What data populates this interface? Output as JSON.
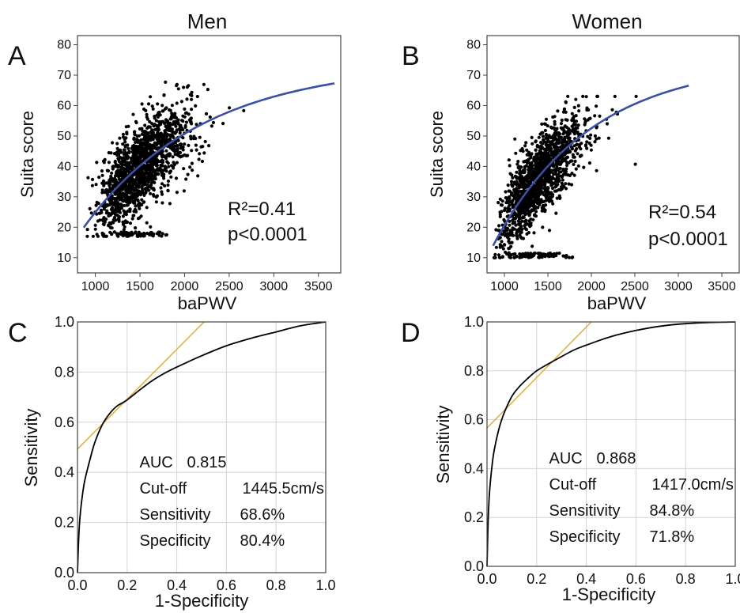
{
  "chart_data": [
    {
      "panel_letter": "A",
      "type": "scatter",
      "title": "Men",
      "xlabel": "baPWV",
      "ylabel": "Suita score",
      "xlim": [
        800,
        3750
      ],
      "ylim": [
        5,
        83
      ],
      "x_ticks": [
        1000,
        1500,
        2000,
        2500,
        3000,
        3500
      ],
      "y_ticks": [
        10,
        20,
        30,
        40,
        50,
        60,
        70,
        80
      ],
      "grid": false,
      "point_cloud": {
        "n": 1500,
        "seed": 11,
        "x_min": 900,
        "x_max": 3600,
        "y_min": 17,
        "y_max": 78,
        "log_x_mean": 7.32,
        "log_x_sd": 0.17,
        "residual_sd": 7.0,
        "y_floor_band": [
          17,
          18.5
        ],
        "fit": {
          "a": 55,
          "b": -1.9e-05
        }
      },
      "fit_line": {
        "color": "#3b4fa3",
        "x_range": [
          870,
          3680
        ]
      },
      "annotations": [
        "R²=0.41",
        "p<0.0001"
      ]
    },
    {
      "panel_letter": "B",
      "type": "scatter",
      "title": "Women",
      "xlabel": "baPWV",
      "ylabel": "Suita score",
      "xlim": [
        800,
        3700
      ],
      "ylim": [
        5,
        83
      ],
      "x_ticks": [
        1000,
        1500,
        2000,
        2500,
        3000,
        3500
      ],
      "y_ticks": [
        10,
        20,
        30,
        40,
        50,
        60,
        70,
        80
      ],
      "grid": false,
      "point_cloud": {
        "n": 1500,
        "seed": 29,
        "x_min": 880,
        "x_max": 3150,
        "y_min": 10,
        "y_max": 63,
        "log_x_mean": 7.24,
        "log_x_sd": 0.17,
        "residual_sd": 6.5,
        "y_floor_band": [
          10,
          11.5
        ],
        "fit": {
          "a": 56,
          "b": -2.3e-05
        }
      },
      "fit_line": {
        "color": "#3b4fa3",
        "x_range": [
          870,
          3120
        ]
      },
      "annotations": [
        "R²=0.54",
        "p<0.0001"
      ]
    },
    {
      "panel_letter": "C",
      "type": "line",
      "title": "",
      "xlabel": "1-Specificity",
      "ylabel": "Sensitivity",
      "xlim": [
        0,
        1
      ],
      "ylim": [
        0,
        1
      ],
      "x_ticks": [
        "0.0",
        "0.2",
        "0.4",
        "0.6",
        "0.8",
        "1.0"
      ],
      "y_ticks": [
        "0.0",
        "0.2",
        "0.4",
        "0.6",
        "0.8",
        "1.0"
      ],
      "grid": true,
      "roc_curve": {
        "x": [
          0,
          0.005,
          0.01,
          0.02,
          0.03,
          0.05,
          0.07,
          0.1,
          0.13,
          0.16,
          0.196,
          0.25,
          0.3,
          0.35,
          0.4,
          0.5,
          0.6,
          0.7,
          0.8,
          0.9,
          1.0
        ],
        "y": [
          0,
          0.14,
          0.22,
          0.31,
          0.37,
          0.45,
          0.52,
          0.59,
          0.635,
          0.665,
          0.686,
          0.728,
          0.765,
          0.795,
          0.82,
          0.865,
          0.905,
          0.935,
          0.96,
          0.985,
          1.0
        ]
      },
      "tangent_line": {
        "color": "#d9b44a",
        "points": [
          [
            0,
            0.493
          ],
          [
            0.51,
            1.0
          ]
        ]
      },
      "annotations": [
        {
          "label": "AUC",
          "value": "0.815"
        },
        {
          "label": "Cut-off",
          "value": "1445.5cm/s"
        },
        {
          "label": "Sensitivity",
          "value": "68.6%"
        },
        {
          "label": "Specificity",
          "value": "80.4%"
        }
      ]
    },
    {
      "panel_letter": "D",
      "type": "line",
      "title": "",
      "xlabel": "1-Specificity",
      "ylabel": "Sensitivity",
      "xlim": [
        0,
        1
      ],
      "ylim": [
        0,
        1
      ],
      "x_ticks": [
        "0.0",
        "0.2",
        "0.4",
        "0.6",
        "0.8",
        "1.0"
      ],
      "y_ticks": [
        "0.0",
        "0.2",
        "0.4",
        "0.6",
        "0.8",
        "1.0"
      ],
      "grid": true,
      "roc_curve": {
        "x": [
          0,
          0.005,
          0.01,
          0.02,
          0.03,
          0.05,
          0.07,
          0.1,
          0.13,
          0.16,
          0.2,
          0.25,
          0.282,
          0.35,
          0.4,
          0.5,
          0.6,
          0.7,
          0.8,
          0.9,
          1.0
        ],
        "y": [
          0,
          0.2,
          0.3,
          0.41,
          0.48,
          0.57,
          0.63,
          0.695,
          0.735,
          0.765,
          0.8,
          0.83,
          0.848,
          0.885,
          0.905,
          0.94,
          0.965,
          0.983,
          0.993,
          0.998,
          1.0
        ]
      },
      "tangent_line": {
        "color": "#d9b44a",
        "points": [
          [
            0,
            0.566
          ],
          [
            0.42,
            1.0
          ]
        ]
      },
      "annotations": [
        {
          "label": "AUC",
          "value": "0.868"
        },
        {
          "label": "Cut-off",
          "value": "1417.0cm/s"
        },
        {
          "label": "Sensitivity",
          "value": "84.8%"
        },
        {
          "label": "Specificity",
          "value": "71.8%"
        }
      ]
    }
  ]
}
